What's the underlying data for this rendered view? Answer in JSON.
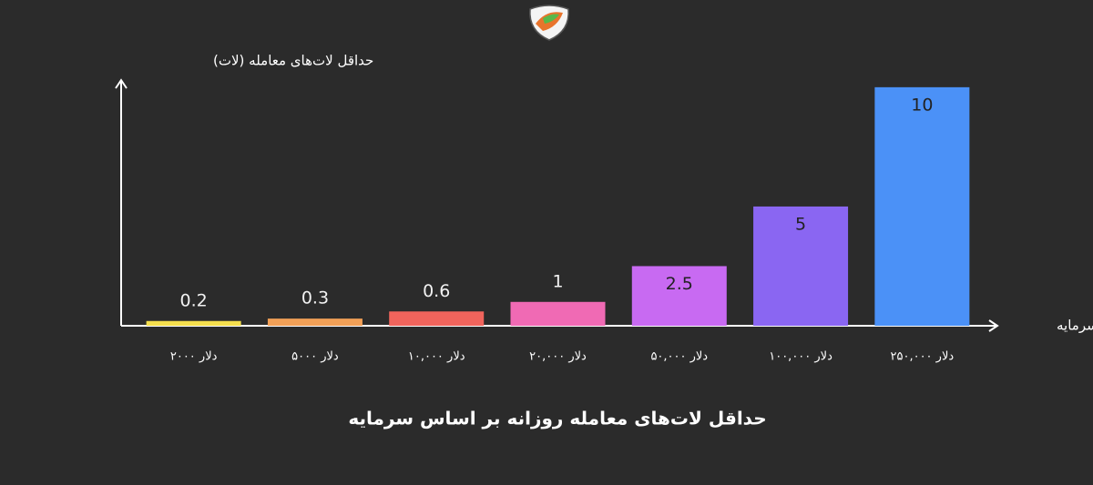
{
  "chart_data": {
    "type": "bar",
    "title": "حداقل لات‌های معامله روزانه بر اساس سرمایه",
    "y_label": "حداقل لات‌های معامله (لات)",
    "x_label": "سرمایه",
    "categories": [
      "دلار ۲۰۰۰",
      "دلار ۵۰۰۰",
      "دلار ۱۰,۰۰۰",
      "دلار ۲۰,۰۰۰",
      "دلار ۵۰,۰۰۰",
      "دلار ۱۰۰,۰۰۰",
      "دلار ۲۵۰,۰۰۰"
    ],
    "values": [
      0.2,
      0.3,
      0.6,
      1,
      2.5,
      5,
      10
    ],
    "colors": [
      "#f5df4d",
      "#f2a057",
      "#f0645c",
      "#f06ab4",
      "#c86af2",
      "#8a66f2",
      "#4b91f7"
    ],
    "ylim": [
      0,
      10.3
    ]
  }
}
